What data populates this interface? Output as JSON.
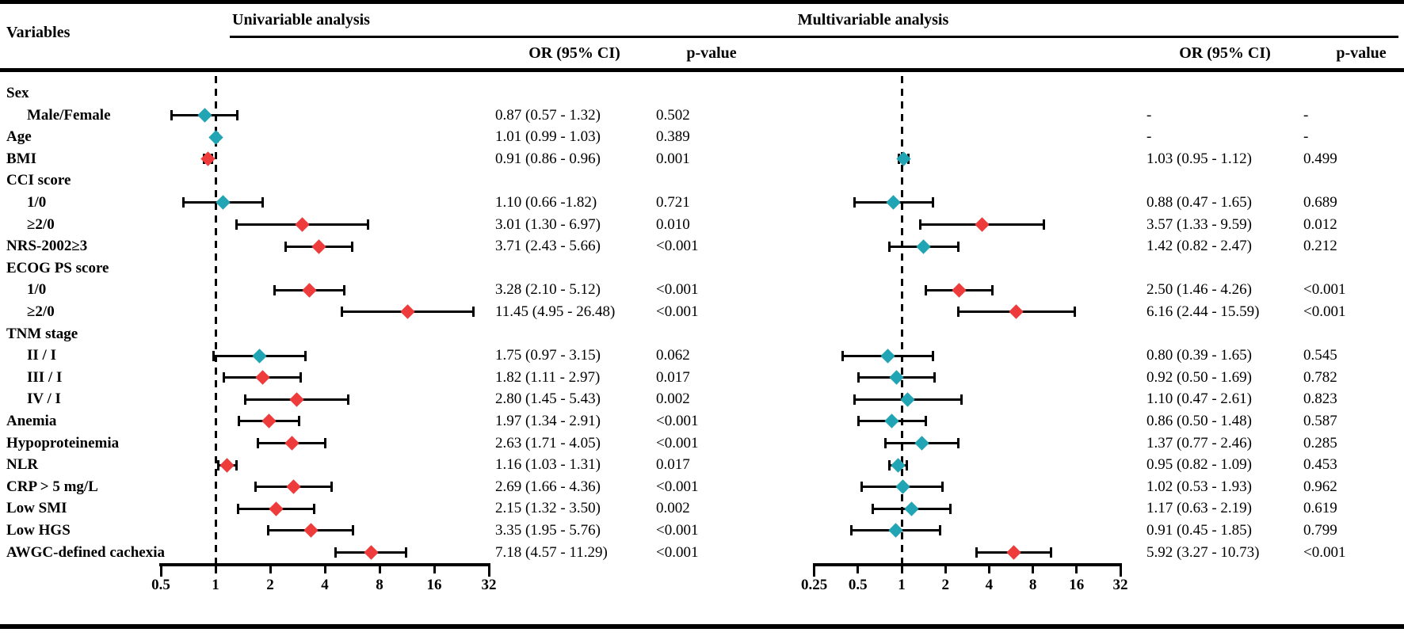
{
  "headers": {
    "variables": "Variables",
    "univariable": "Univariable analysis",
    "multivariable": "Multivariable analysis",
    "or_ci": "OR (95% CI)",
    "p_value": "p-value"
  },
  "colors": {
    "significant": "#ee3c3c",
    "nonsignificant": "#21a5b4",
    "axis": "#000000"
  },
  "chart_data": {
    "type": "forest",
    "x_scale": "log2",
    "grid": false,
    "legend": null,
    "panels": [
      {
        "id": "uni",
        "title": "Univariable analysis",
        "xlim": [
          0.5,
          32
        ],
        "xticks": [
          0.5,
          1,
          2,
          4,
          8,
          16,
          32
        ],
        "refline": 1
      },
      {
        "id": "multi",
        "title": "Multivariable analysis",
        "xlim": [
          0.25,
          32
        ],
        "xticks": [
          0.25,
          0.5,
          1,
          2,
          4,
          8,
          16,
          32
        ],
        "refline": 1
      }
    ],
    "rows": [
      {
        "label": "Sex",
        "indent": 0,
        "uni": null,
        "multi": null
      },
      {
        "label": "Male/Female",
        "indent": 1,
        "uni": {
          "or": 0.87,
          "ci": [
            0.57,
            1.32
          ],
          "or_text": "0.87 (0.57 - 1.32)",
          "p": "0.502",
          "sig": false
        },
        "multi": {
          "or": null,
          "or_text": "-",
          "p": "-"
        }
      },
      {
        "label": "Age",
        "indent": 0,
        "uni": {
          "or": 1.01,
          "ci": [
            0.99,
            1.03
          ],
          "or_text": "1.01 (0.99 - 1.03)",
          "p": "0.389",
          "sig": false
        },
        "multi": {
          "or": null,
          "or_text": "-",
          "p": "-"
        }
      },
      {
        "label": "BMI",
        "indent": 0,
        "uni": {
          "or": 0.91,
          "ci": [
            0.86,
            0.96
          ],
          "or_text": "0.91 (0.86 - 0.96)",
          "p": "0.001",
          "sig": true
        },
        "multi": {
          "or": 1.03,
          "ci": [
            0.95,
            1.12
          ],
          "or_text": "1.03 (0.95 - 1.12)",
          "p": "0.499",
          "sig": false
        }
      },
      {
        "label": "CCI score",
        "indent": 0,
        "uni": null,
        "multi": null
      },
      {
        "label": "1/0",
        "indent": 1,
        "uni": {
          "or": 1.1,
          "ci": [
            0.66,
            1.82
          ],
          "or_text": "1.10 (0.66 -1.82)",
          "p": "0.721",
          "sig": false
        },
        "multi": {
          "or": 0.88,
          "ci": [
            0.47,
            1.65
          ],
          "or_text": "0.88 (0.47 - 1.65)",
          "p": "0.689",
          "sig": false
        }
      },
      {
        "label": "≥2/0",
        "indent": 1,
        "uni": {
          "or": 3.01,
          "ci": [
            1.3,
            6.97
          ],
          "or_text": "3.01 (1.30 - 6.97)",
          "p": "0.010",
          "sig": true
        },
        "multi": {
          "or": 3.57,
          "ci": [
            1.33,
            9.59
          ],
          "or_text": "3.57 (1.33 - 9.59)",
          "p": "0.012",
          "sig": true
        }
      },
      {
        "label": "NRS-2002≥3",
        "indent": 0,
        "uni": {
          "or": 3.71,
          "ci": [
            2.43,
            5.66
          ],
          "or_text": "3.71 (2.43 - 5.66)",
          "p": "<0.001",
          "sig": true
        },
        "multi": {
          "or": 1.42,
          "ci": [
            0.82,
            2.47
          ],
          "or_text": "1.42 (0.82 - 2.47)",
          "p": "0.212",
          "sig": false
        }
      },
      {
        "label": "ECOG PS score",
        "indent": 0,
        "uni": null,
        "multi": null
      },
      {
        "label": "1/0",
        "indent": 1,
        "uni": {
          "or": 3.28,
          "ci": [
            2.1,
            5.12
          ],
          "or_text": "3.28 (2.10 - 5.12)",
          "p": "<0.001",
          "sig": true
        },
        "multi": {
          "or": 2.5,
          "ci": [
            1.46,
            4.26
          ],
          "or_text": "2.50 (1.46 - 4.26)",
          "p": "<0.001",
          "sig": true
        }
      },
      {
        "label": "≥2/0",
        "indent": 1,
        "uni": {
          "or": 11.45,
          "ci": [
            4.95,
            26.48
          ],
          "or_text": "11.45 (4.95 - 26.48)",
          "p": "<0.001",
          "sig": true
        },
        "multi": {
          "or": 6.16,
          "ci": [
            2.44,
            15.59
          ],
          "or_text": "6.16 (2.44 - 15.59)",
          "p": "<0.001",
          "sig": true
        }
      },
      {
        "label": "TNM stage",
        "indent": 0,
        "uni": null,
        "multi": null
      },
      {
        "label": "II / I",
        "indent": 1,
        "uni": {
          "or": 1.75,
          "ci": [
            0.97,
            3.15
          ],
          "or_text": "1.75 (0.97 - 3.15)",
          "p": "0.062",
          "sig": false
        },
        "multi": {
          "or": 0.8,
          "ci": [
            0.39,
            1.65
          ],
          "or_text": "0.80 (0.39 - 1.65)",
          "p": "0.545",
          "sig": false
        }
      },
      {
        "label": "III / I",
        "indent": 1,
        "uni": {
          "or": 1.82,
          "ci": [
            1.11,
            2.97
          ],
          "or_text": "1.82 (1.11 - 2.97)",
          "p": "0.017",
          "sig": true
        },
        "multi": {
          "or": 0.92,
          "ci": [
            0.5,
            1.69
          ],
          "or_text": "0.92 (0.50 - 1.69)",
          "p": "0.782",
          "sig": false
        }
      },
      {
        "label": "IV / I",
        "indent": 1,
        "uni": {
          "or": 2.8,
          "ci": [
            1.45,
            5.43
          ],
          "or_text": "2.80 (1.45 - 5.43)",
          "p": "0.002",
          "sig": true
        },
        "multi": {
          "or": 1.1,
          "ci": [
            0.47,
            2.61
          ],
          "or_text": "1.10 (0.47 - 2.61)",
          "p": "0.823",
          "sig": false
        }
      },
      {
        "label": "Anemia",
        "indent": 0,
        "uni": {
          "or": 1.97,
          "ci": [
            1.34,
            2.91
          ],
          "or_text": "1.97 (1.34 - 2.91)",
          "p": "<0.001",
          "sig": true
        },
        "multi": {
          "or": 0.86,
          "ci": [
            0.5,
            1.48
          ],
          "or_text": "0.86 (0.50 - 1.48)",
          "p": "0.587",
          "sig": false
        }
      },
      {
        "label": "Hypoproteinemia",
        "indent": 0,
        "uni": {
          "or": 2.63,
          "ci": [
            1.71,
            4.05
          ],
          "or_text": "2.63 (1.71 - 4.05)",
          "p": "<0.001",
          "sig": true
        },
        "multi": {
          "or": 1.37,
          "ci": [
            0.77,
            2.46
          ],
          "or_text": "1.37 (0.77 - 2.46)",
          "p": "0.285",
          "sig": false
        }
      },
      {
        "label": "NLR",
        "indent": 0,
        "uni": {
          "or": 1.16,
          "ci": [
            1.03,
            1.31
          ],
          "or_text": "1.16 (1.03 - 1.31)",
          "p": "0.017",
          "sig": true
        },
        "multi": {
          "or": 0.95,
          "ci": [
            0.82,
            1.09
          ],
          "or_text": "0.95 (0.82 - 1.09)",
          "p": "0.453",
          "sig": false
        }
      },
      {
        "label": "CRP > 5 mg/L",
        "indent": 0,
        "uni": {
          "or": 2.69,
          "ci": [
            1.66,
            4.36
          ],
          "or_text": "2.69 (1.66 - 4.36)",
          "p": "<0.001",
          "sig": true
        },
        "multi": {
          "or": 1.02,
          "ci": [
            0.53,
            1.93
          ],
          "or_text": "1.02 (0.53 - 1.93)",
          "p": "0.962",
          "sig": false
        }
      },
      {
        "label": "Low SMI",
        "indent": 0,
        "uni": {
          "or": 2.15,
          "ci": [
            1.32,
            3.5
          ],
          "or_text": "2.15 (1.32 - 3.50)",
          "p": "0.002",
          "sig": true
        },
        "multi": {
          "or": 1.17,
          "ci": [
            0.63,
            2.19
          ],
          "or_text": "1.17 (0.63 - 2.19)",
          "p": "0.619",
          "sig": false
        }
      },
      {
        "label": "Low HGS",
        "indent": 0,
        "uni": {
          "or": 3.35,
          "ci": [
            1.95,
            5.76
          ],
          "or_text": "3.35 (1.95 - 5.76)",
          "p": "<0.001",
          "sig": true
        },
        "multi": {
          "or": 0.91,
          "ci": [
            0.45,
            1.85
          ],
          "or_text": "0.91 (0.45 - 1.85)",
          "p": "0.799",
          "sig": false
        }
      },
      {
        "label": "AWGC-defined cachexia",
        "indent": 0,
        "uni": {
          "or": 7.18,
          "ci": [
            4.57,
            11.29
          ],
          "or_text": "7.18 (4.57 - 11.29)",
          "p": "<0.001",
          "sig": true
        },
        "multi": {
          "or": 5.92,
          "ci": [
            3.27,
            10.73
          ],
          "or_text": "5.92 (3.27 - 10.73)",
          "p": "<0.001",
          "sig": true
        }
      }
    ]
  }
}
